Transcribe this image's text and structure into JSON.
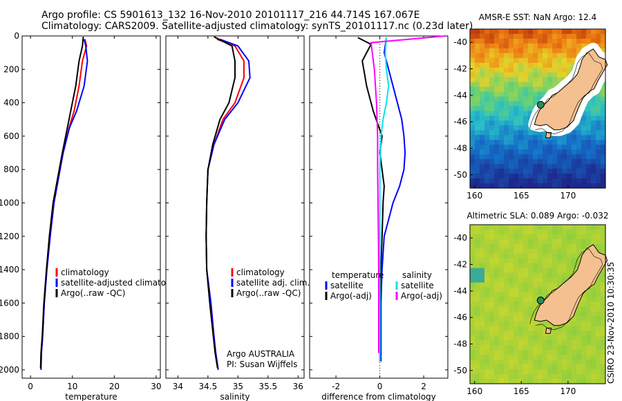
{
  "header": {
    "line1": "Argo profile: CS 5901613_132 16-Nov-2010 20101117_216 44.714S 167.067E",
    "line2": "Climatology: CARS2009. Satellite-adjusted climatology: synTS_20101117.nc (0.23d later)"
  },
  "stamp": "CSIRO 23-Nov-2010 10:30:35",
  "colors": {
    "climatology": "#ff0000",
    "satellite": "#0000ff",
    "argo": "#000000",
    "sat_diff": "#00e5ee",
    "argo_adj": "#ff00ff"
  },
  "chart_data": [
    {
      "type": "line",
      "xlabel": "temperature",
      "xlim": [
        -2,
        31
      ],
      "ylim": [
        0,
        2050
      ],
      "xticks": [
        "0",
        "10",
        "20",
        "30"
      ],
      "xtick_values": [
        0,
        10,
        20,
        30
      ],
      "yticks": [
        "0",
        "200",
        "400",
        "600",
        "800",
        "1000",
        "1200",
        "1400",
        "1600",
        "1800",
        "2000"
      ],
      "legend": [
        "climatology",
        "satellite-adjusted climatology",
        "Argo(..raw -QC)"
      ],
      "series": [
        {
          "name": "climatology",
          "color": "#ff0000",
          "x": [
            13,
            13.4,
            12.4,
            11.6,
            10.4,
            9.2,
            7.8,
            6.7,
            5.6,
            4.7,
            3.9,
            3.3,
            2.9,
            2.6,
            2.5
          ],
          "y": [
            20,
            60,
            150,
            300,
            450,
            550,
            700,
            850,
            1000,
            1200,
            1400,
            1600,
            1800,
            1900,
            2000
          ]
        },
        {
          "name": "satellite-adjusted climatology",
          "color": "#0000ff",
          "x": [
            12.8,
            13.2,
            13.6,
            12.8,
            11,
            9.3,
            7.8,
            6.7,
            5.6,
            4.7,
            3.9,
            3.3,
            2.9,
            2.6,
            2.5
          ],
          "y": [
            20,
            60,
            150,
            300,
            450,
            550,
            700,
            850,
            1000,
            1200,
            1400,
            1600,
            1800,
            1900,
            2000
          ]
        },
        {
          "name": "Argo(..raw -QC)",
          "color": "#000000",
          "x": [
            12.6,
            12.4,
            11.6,
            10.8,
            9.6,
            8.8,
            7.6,
            6.5,
            5.4,
            4.5,
            3.8,
            3.2,
            2.8,
            2.5,
            2.4
          ],
          "y": [
            5,
            60,
            150,
            300,
            450,
            550,
            700,
            850,
            1000,
            1200,
            1400,
            1600,
            1800,
            1900,
            1990
          ]
        }
      ]
    },
    {
      "type": "line",
      "xlabel": "salinity",
      "xlim": [
        33.8,
        36.1
      ],
      "ylim": [
        0,
        2050
      ],
      "xticks": [
        "34",
        "34.5",
        "35",
        "35.5",
        "36"
      ],
      "xtick_values": [
        34,
        34.5,
        35,
        35.5,
        36
      ],
      "legend": [
        "climatology",
        "satellite adj. clim.",
        "Argo(..raw -QC)"
      ],
      "annotation": [
        "Argo AUSTRALIA",
        "PI: Susan Wijffels"
      ],
      "series": [
        {
          "name": "climatology",
          "color": "#ff0000",
          "x": [
            34.65,
            34.95,
            35.1,
            35.1,
            34.95,
            34.75,
            34.6,
            34.5,
            34.48,
            34.47,
            34.48,
            34.55,
            34.6,
            34.63,
            34.67
          ],
          "y": [
            20,
            60,
            150,
            250,
            400,
            500,
            650,
            800,
            1000,
            1200,
            1400,
            1600,
            1800,
            1900,
            2000
          ]
        },
        {
          "name": "satellite adj. clim.",
          "color": "#0000ff",
          "x": [
            34.7,
            35.0,
            35.18,
            35.2,
            35.0,
            34.78,
            34.6,
            34.5,
            34.48,
            34.47,
            34.48,
            34.55,
            34.6,
            34.63,
            34.67
          ],
          "y": [
            20,
            60,
            150,
            250,
            400,
            500,
            650,
            800,
            1000,
            1200,
            1400,
            1600,
            1800,
            1900,
            2000
          ]
        },
        {
          "name": "Argo(..raw -QC)",
          "color": "#000000",
          "x": [
            34.6,
            34.9,
            34.95,
            34.95,
            34.85,
            34.7,
            34.58,
            34.5,
            34.48,
            34.47,
            34.48,
            34.53,
            34.59,
            34.62,
            34.66
          ],
          "y": [
            5,
            60,
            150,
            250,
            400,
            500,
            650,
            800,
            1000,
            1200,
            1400,
            1600,
            1800,
            1900,
            1990
          ]
        }
      ]
    },
    {
      "type": "line",
      "xlabel": "difference from climatology",
      "xlim": [
        -3.2,
        3.1
      ],
      "ylim": [
        0,
        2050
      ],
      "xticks": [
        "-2",
        "0",
        "2"
      ],
      "xtick_values": [
        -2,
        0,
        2
      ],
      "legend_headers": [
        "temperature",
        "salinity"
      ],
      "legend": [
        "satellite",
        "Argo(-adj)",
        "satellite",
        "Argo(-adj)"
      ],
      "series": [
        {
          "name": "satellite",
          "color": "#0000ff",
          "x": [
            0.3,
            0.2,
            0.4,
            0.8,
            1.0,
            1.1,
            1.15,
            1.1,
            0.9,
            0.6,
            0.4,
            0.2,
            0.1,
            0.05,
            0.05,
            0.05
          ],
          "y": [
            10,
            100,
            200,
            400,
            500,
            600,
            700,
            800,
            900,
            1000,
            1100,
            1200,
            1400,
            1600,
            1800,
            1950
          ]
        },
        {
          "name": "Argo(-adj)",
          "color": "#000000",
          "x": [
            -1.0,
            -0.4,
            -0.8,
            -0.6,
            -0.3,
            0.1,
            0.0,
            0.1,
            0.2,
            0.15,
            0.1,
            0.05,
            0.0,
            0.0,
            0.0
          ],
          "y": [
            10,
            50,
            150,
            300,
            450,
            600,
            700,
            800,
            900,
            1000,
            1200,
            1400,
            1600,
            1800,
            1950
          ]
        },
        {
          "name": "satellite",
          "color": "#00e5ee",
          "x": [
            0.3,
            0.25,
            0.3,
            0.4,
            0.3,
            0.15,
            0.05,
            0.0,
            0.0,
            0.0,
            0.0,
            0.0
          ],
          "y": [
            10,
            100,
            200,
            300,
            400,
            500,
            600,
            800,
            1000,
            1400,
            1800,
            1950
          ]
        },
        {
          "name": "Argo(-adj)",
          "color": "#ff00ff",
          "x": [
            3.0,
            -0.4,
            -0.25,
            -0.15,
            -0.1,
            -0.1,
            -0.08,
            -0.05,
            -0.05
          ],
          "y": [
            0,
            40,
            200,
            400,
            600,
            800,
            1000,
            1400,
            1900
          ]
        }
      ]
    }
  ],
  "maps": [
    {
      "title": "AMSR-E SST: NaN Argo: 12.4",
      "type": "sst",
      "lon_range": [
        159.5,
        174
      ],
      "lat_range": [
        -51,
        -39
      ],
      "xticks": [
        "160",
        "165",
        "170"
      ],
      "yticks": [
        "-40",
        "-42",
        "-44",
        "-46",
        "-48",
        "-50"
      ],
      "argo": [
        167.067,
        -44.714
      ]
    },
    {
      "title": "Altimetric SLA: 0.089 Argo: -0.032",
      "type": "sla",
      "lon_range": [
        159.5,
        174
      ],
      "lat_range": [
        -51,
        -39
      ],
      "xticks": [
        "160",
        "165",
        "170"
      ],
      "yticks": [
        "-40",
        "-42",
        "-44",
        "-46",
        "-48",
        "-50"
      ],
      "argo": [
        167.067,
        -44.714
      ]
    }
  ]
}
